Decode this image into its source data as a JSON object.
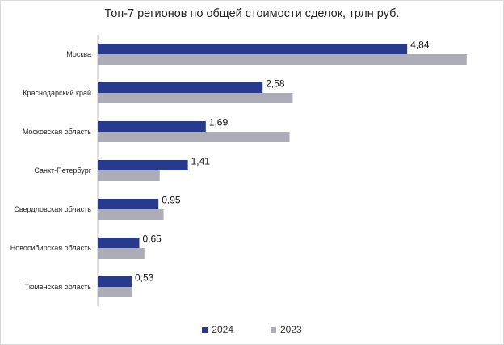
{
  "chart_data": {
    "type": "bar",
    "orientation": "horizontal",
    "title": "Топ-7 регионов по общей стоимости сделок, трлн руб.",
    "xlabel": "",
    "ylabel": "",
    "categories": [
      "Москва",
      "Краснодарский  край",
      "Московская область",
      "Санкт-Петербург",
      "Свердловская область",
      "Новосибирская область",
      "Тюменская  область"
    ],
    "series": [
      {
        "name": "2024",
        "color": "#283a8c",
        "values": [
          4.84,
          2.58,
          1.69,
          1.41,
          0.95,
          0.65,
          0.53
        ],
        "labels": [
          "4,84",
          "2,58",
          "1,69",
          "1,41",
          "0,95",
          "0,65",
          "0,53"
        ]
      },
      {
        "name": "2023",
        "color": "#adadb9",
        "values": [
          5.77,
          3.05,
          3.0,
          0.97,
          1.03,
          0.73,
          0.53
        ],
        "labels": []
      }
    ],
    "xlim": [
      0,
      6.0
    ],
    "grid": false,
    "legend_position": "bottom"
  }
}
